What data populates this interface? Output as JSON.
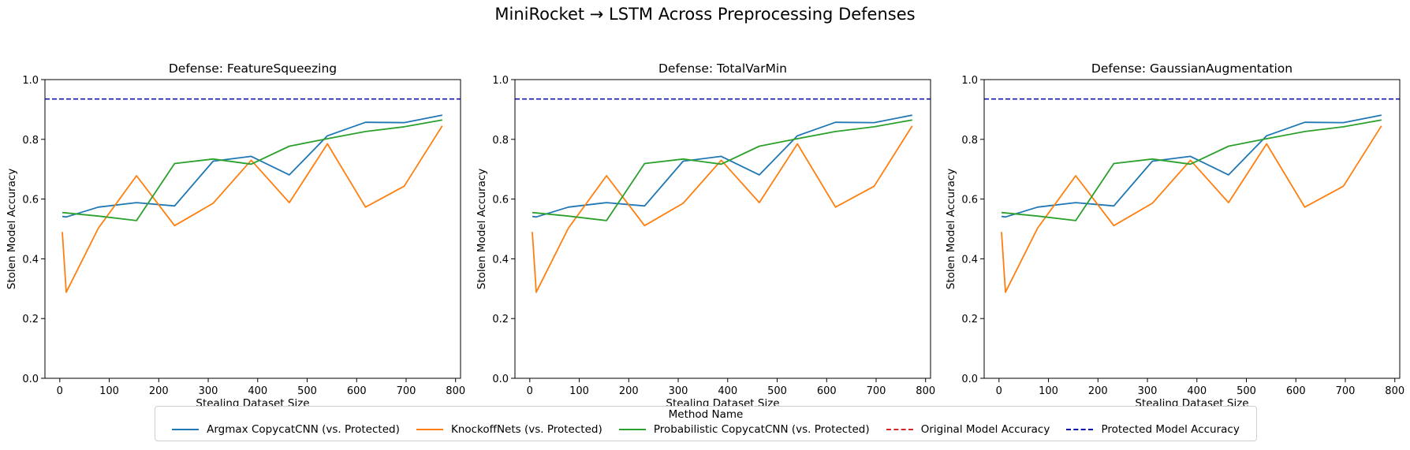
{
  "figure": {
    "suptitle": "MiniRocket → LSTM Across Preprocessing Defenses"
  },
  "legend": {
    "title": "Method Name",
    "entries": [
      {
        "label": "Argmax CopycatCNN (vs. Protected)",
        "color": "#1f77b4",
        "style": "solid"
      },
      {
        "label": "KnockoffNets (vs. Protected)",
        "color": "#ff7f0e",
        "style": "solid"
      },
      {
        "label": "Probabilistic CopycatCNN (vs. Protected)",
        "color": "#2ca02c",
        "style": "solid"
      },
      {
        "label": "Original Model Accuracy",
        "color": "#d62728",
        "style": "dashed"
      },
      {
        "label": "Protected Model Accuracy",
        "color": "#0000aa",
        "style": "dashed"
      }
    ]
  },
  "chart_data": [
    {
      "type": "line",
      "title": "Defense: FeatureSqueezing",
      "xlabel": "Stealing Dataset Size",
      "ylabel": "Stolen Model Accuracy",
      "xlim": [
        -30,
        810
      ],
      "ylim": [
        0,
        1.0
      ],
      "xticks": [
        0,
        100,
        200,
        300,
        400,
        500,
        600,
        700,
        800
      ],
      "yticks": [
        0.0,
        0.2,
        0.4,
        0.6,
        0.8,
        1.0
      ],
      "series": [
        {
          "name": "Argmax CopycatCNN (vs. Protected)",
          "color": "#1f77b4",
          "x": [
            5,
            13,
            78,
            155,
            232,
            310,
            387,
            464,
            541,
            618,
            696,
            773
          ],
          "y": [
            0.542,
            0.54,
            0.573,
            0.588,
            0.577,
            0.727,
            0.743,
            0.681,
            0.812,
            0.857,
            0.856,
            0.881
          ]
        },
        {
          "name": "KnockoffNets (vs. Protected)",
          "color": "#ff7f0e",
          "x": [
            5,
            13,
            78,
            155,
            232,
            310,
            387,
            464,
            541,
            618,
            696,
            773
          ],
          "y": [
            0.49,
            0.288,
            0.503,
            0.678,
            0.511,
            0.586,
            0.73,
            0.588,
            0.785,
            0.573,
            0.643,
            0.845
          ]
        },
        {
          "name": "Probabilistic CopycatCNN (vs. Protected)",
          "color": "#2ca02c",
          "x": [
            5,
            78,
            155,
            232,
            310,
            387,
            464,
            541,
            618,
            696,
            773
          ],
          "y": [
            0.555,
            0.543,
            0.528,
            0.719,
            0.734,
            0.717,
            0.777,
            0.802,
            0.826,
            0.842,
            0.865
          ]
        }
      ],
      "hlines": [
        {
          "name": "Protected Model Accuracy",
          "y": 0.935,
          "color": "#0000aa",
          "style": "dashed"
        }
      ]
    },
    {
      "type": "line",
      "title": "Defense: TotalVarMin",
      "xlabel": "Stealing Dataset Size",
      "ylabel": "Stolen Model Accuracy",
      "xlim": [
        -30,
        810
      ],
      "ylim": [
        0,
        1.0
      ],
      "xticks": [
        0,
        100,
        200,
        300,
        400,
        500,
        600,
        700,
        800
      ],
      "yticks": [
        0.0,
        0.2,
        0.4,
        0.6,
        0.8,
        1.0
      ],
      "series": [
        {
          "name": "Argmax CopycatCNN (vs. Protected)",
          "color": "#1f77b4",
          "x": [
            5,
            13,
            78,
            155,
            232,
            310,
            387,
            464,
            541,
            618,
            696,
            773
          ],
          "y": [
            0.542,
            0.54,
            0.573,
            0.588,
            0.577,
            0.727,
            0.743,
            0.681,
            0.812,
            0.857,
            0.856,
            0.881
          ]
        },
        {
          "name": "KnockoffNets (vs. Protected)",
          "color": "#ff7f0e",
          "x": [
            5,
            13,
            78,
            155,
            232,
            310,
            387,
            464,
            541,
            618,
            696,
            773
          ],
          "y": [
            0.49,
            0.288,
            0.503,
            0.678,
            0.511,
            0.586,
            0.73,
            0.588,
            0.785,
            0.573,
            0.643,
            0.845
          ]
        },
        {
          "name": "Probabilistic CopycatCNN (vs. Protected)",
          "color": "#2ca02c",
          "x": [
            5,
            78,
            155,
            232,
            310,
            387,
            464,
            541,
            618,
            696,
            773
          ],
          "y": [
            0.555,
            0.543,
            0.528,
            0.719,
            0.734,
            0.717,
            0.777,
            0.802,
            0.826,
            0.842,
            0.865
          ]
        }
      ],
      "hlines": [
        {
          "name": "Protected Model Accuracy",
          "y": 0.935,
          "color": "#0000aa",
          "style": "dashed"
        }
      ]
    },
    {
      "type": "line",
      "title": "Defense: GaussianAugmentation",
      "xlabel": "Stealing Dataset Size",
      "ylabel": "Stolen Model Accuracy",
      "xlim": [
        -30,
        810
      ],
      "ylim": [
        0,
        1.0
      ],
      "xticks": [
        0,
        100,
        200,
        300,
        400,
        500,
        600,
        700,
        800
      ],
      "yticks": [
        0.0,
        0.2,
        0.4,
        0.6,
        0.8,
        1.0
      ],
      "series": [
        {
          "name": "Argmax CopycatCNN (vs. Protected)",
          "color": "#1f77b4",
          "x": [
            5,
            13,
            78,
            155,
            232,
            310,
            387,
            464,
            541,
            618,
            696,
            773
          ],
          "y": [
            0.542,
            0.54,
            0.573,
            0.588,
            0.577,
            0.727,
            0.743,
            0.681,
            0.812,
            0.857,
            0.856,
            0.881
          ]
        },
        {
          "name": "KnockoffNets (vs. Protected)",
          "color": "#ff7f0e",
          "x": [
            5,
            13,
            78,
            155,
            232,
            310,
            387,
            464,
            541,
            618,
            696,
            773
          ],
          "y": [
            0.49,
            0.288,
            0.503,
            0.678,
            0.511,
            0.586,
            0.73,
            0.588,
            0.785,
            0.573,
            0.643,
            0.845
          ]
        },
        {
          "name": "Probabilistic CopycatCNN (vs. Protected)",
          "color": "#2ca02c",
          "x": [
            5,
            78,
            155,
            232,
            310,
            387,
            464,
            541,
            618,
            696,
            773
          ],
          "y": [
            0.555,
            0.543,
            0.528,
            0.719,
            0.734,
            0.717,
            0.777,
            0.802,
            0.826,
            0.842,
            0.865
          ]
        }
      ],
      "hlines": [
        {
          "name": "Protected Model Accuracy",
          "y": 0.935,
          "color": "#0000aa",
          "style": "dashed"
        }
      ]
    }
  ]
}
